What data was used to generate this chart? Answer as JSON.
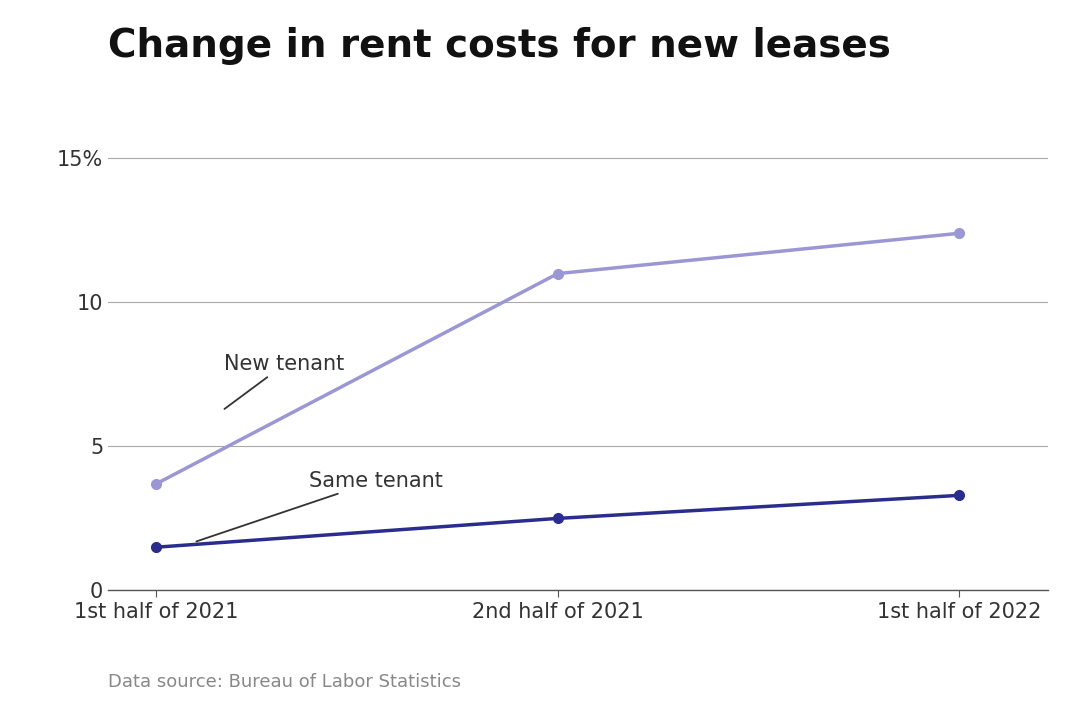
{
  "title": "Change in rent costs for new leases",
  "x_labels": [
    "1st half of 2021",
    "2nd half of 2021",
    "1st half of 2022"
  ],
  "x_values": [
    0,
    1,
    2
  ],
  "new_tenant": [
    3.7,
    11.0,
    12.4
  ],
  "same_tenant": [
    1.5,
    2.5,
    3.3
  ],
  "new_tenant_color": "#9b97d4",
  "same_tenant_color": "#2b2d8e",
  "ylim": [
    0,
    16
  ],
  "yticks": [
    0,
    5,
    10,
    15
  ],
  "ytick_labels": [
    "0",
    "5",
    "10",
    "15%"
  ],
  "background_color": "#ffffff",
  "title_fontsize": 28,
  "annotation_new_tenant": "New tenant",
  "annotation_same_tenant": "Same tenant",
  "data_source": "Data source: Bureau of Labor Statistics",
  "figsize": [
    10.8,
    7.2
  ],
  "dpi": 100
}
